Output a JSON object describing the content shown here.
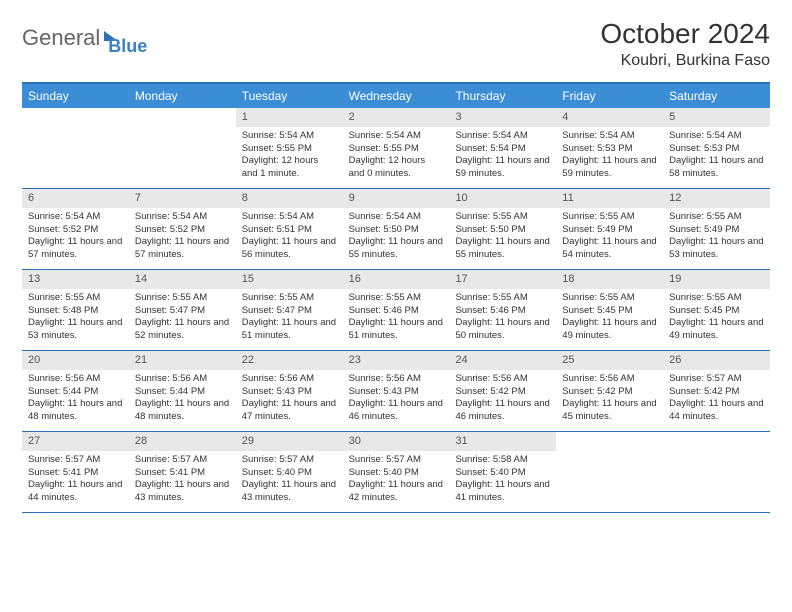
{
  "logo": {
    "part1": "General",
    "part2": "Blue"
  },
  "title": "October 2024",
  "location": "Koubri, Burkina Faso",
  "colors": {
    "header_bg": "#3b8dd6",
    "border": "#2d6fb5",
    "daynum_bg": "#e8e8e8",
    "text": "#333333"
  },
  "weekdays": [
    "Sunday",
    "Monday",
    "Tuesday",
    "Wednesday",
    "Thursday",
    "Friday",
    "Saturday"
  ],
  "weeks": [
    [
      {
        "empty": true
      },
      {
        "empty": true
      },
      {
        "num": "1",
        "sunrise": "Sunrise: 5:54 AM",
        "sunset": "Sunset: 5:55 PM",
        "daylight": "Daylight: 12 hours and 1 minute."
      },
      {
        "num": "2",
        "sunrise": "Sunrise: 5:54 AM",
        "sunset": "Sunset: 5:55 PM",
        "daylight": "Daylight: 12 hours and 0 minutes."
      },
      {
        "num": "3",
        "sunrise": "Sunrise: 5:54 AM",
        "sunset": "Sunset: 5:54 PM",
        "daylight": "Daylight: 11 hours and 59 minutes."
      },
      {
        "num": "4",
        "sunrise": "Sunrise: 5:54 AM",
        "sunset": "Sunset: 5:53 PM",
        "daylight": "Daylight: 11 hours and 59 minutes."
      },
      {
        "num": "5",
        "sunrise": "Sunrise: 5:54 AM",
        "sunset": "Sunset: 5:53 PM",
        "daylight": "Daylight: 11 hours and 58 minutes."
      }
    ],
    [
      {
        "num": "6",
        "sunrise": "Sunrise: 5:54 AM",
        "sunset": "Sunset: 5:52 PM",
        "daylight": "Daylight: 11 hours and 57 minutes."
      },
      {
        "num": "7",
        "sunrise": "Sunrise: 5:54 AM",
        "sunset": "Sunset: 5:52 PM",
        "daylight": "Daylight: 11 hours and 57 minutes."
      },
      {
        "num": "8",
        "sunrise": "Sunrise: 5:54 AM",
        "sunset": "Sunset: 5:51 PM",
        "daylight": "Daylight: 11 hours and 56 minutes."
      },
      {
        "num": "9",
        "sunrise": "Sunrise: 5:54 AM",
        "sunset": "Sunset: 5:50 PM",
        "daylight": "Daylight: 11 hours and 55 minutes."
      },
      {
        "num": "10",
        "sunrise": "Sunrise: 5:55 AM",
        "sunset": "Sunset: 5:50 PM",
        "daylight": "Daylight: 11 hours and 55 minutes."
      },
      {
        "num": "11",
        "sunrise": "Sunrise: 5:55 AM",
        "sunset": "Sunset: 5:49 PM",
        "daylight": "Daylight: 11 hours and 54 minutes."
      },
      {
        "num": "12",
        "sunrise": "Sunrise: 5:55 AM",
        "sunset": "Sunset: 5:49 PM",
        "daylight": "Daylight: 11 hours and 53 minutes."
      }
    ],
    [
      {
        "num": "13",
        "sunrise": "Sunrise: 5:55 AM",
        "sunset": "Sunset: 5:48 PM",
        "daylight": "Daylight: 11 hours and 53 minutes."
      },
      {
        "num": "14",
        "sunrise": "Sunrise: 5:55 AM",
        "sunset": "Sunset: 5:47 PM",
        "daylight": "Daylight: 11 hours and 52 minutes."
      },
      {
        "num": "15",
        "sunrise": "Sunrise: 5:55 AM",
        "sunset": "Sunset: 5:47 PM",
        "daylight": "Daylight: 11 hours and 51 minutes."
      },
      {
        "num": "16",
        "sunrise": "Sunrise: 5:55 AM",
        "sunset": "Sunset: 5:46 PM",
        "daylight": "Daylight: 11 hours and 51 minutes."
      },
      {
        "num": "17",
        "sunrise": "Sunrise: 5:55 AM",
        "sunset": "Sunset: 5:46 PM",
        "daylight": "Daylight: 11 hours and 50 minutes."
      },
      {
        "num": "18",
        "sunrise": "Sunrise: 5:55 AM",
        "sunset": "Sunset: 5:45 PM",
        "daylight": "Daylight: 11 hours and 49 minutes."
      },
      {
        "num": "19",
        "sunrise": "Sunrise: 5:55 AM",
        "sunset": "Sunset: 5:45 PM",
        "daylight": "Daylight: 11 hours and 49 minutes."
      }
    ],
    [
      {
        "num": "20",
        "sunrise": "Sunrise: 5:56 AM",
        "sunset": "Sunset: 5:44 PM",
        "daylight": "Daylight: 11 hours and 48 minutes."
      },
      {
        "num": "21",
        "sunrise": "Sunrise: 5:56 AM",
        "sunset": "Sunset: 5:44 PM",
        "daylight": "Daylight: 11 hours and 48 minutes."
      },
      {
        "num": "22",
        "sunrise": "Sunrise: 5:56 AM",
        "sunset": "Sunset: 5:43 PM",
        "daylight": "Daylight: 11 hours and 47 minutes."
      },
      {
        "num": "23",
        "sunrise": "Sunrise: 5:56 AM",
        "sunset": "Sunset: 5:43 PM",
        "daylight": "Daylight: 11 hours and 46 minutes."
      },
      {
        "num": "24",
        "sunrise": "Sunrise: 5:56 AM",
        "sunset": "Sunset: 5:42 PM",
        "daylight": "Daylight: 11 hours and 46 minutes."
      },
      {
        "num": "25",
        "sunrise": "Sunrise: 5:56 AM",
        "sunset": "Sunset: 5:42 PM",
        "daylight": "Daylight: 11 hours and 45 minutes."
      },
      {
        "num": "26",
        "sunrise": "Sunrise: 5:57 AM",
        "sunset": "Sunset: 5:42 PM",
        "daylight": "Daylight: 11 hours and 44 minutes."
      }
    ],
    [
      {
        "num": "27",
        "sunrise": "Sunrise: 5:57 AM",
        "sunset": "Sunset: 5:41 PM",
        "daylight": "Daylight: 11 hours and 44 minutes."
      },
      {
        "num": "28",
        "sunrise": "Sunrise: 5:57 AM",
        "sunset": "Sunset: 5:41 PM",
        "daylight": "Daylight: 11 hours and 43 minutes."
      },
      {
        "num": "29",
        "sunrise": "Sunrise: 5:57 AM",
        "sunset": "Sunset: 5:40 PM",
        "daylight": "Daylight: 11 hours and 43 minutes."
      },
      {
        "num": "30",
        "sunrise": "Sunrise: 5:57 AM",
        "sunset": "Sunset: 5:40 PM",
        "daylight": "Daylight: 11 hours and 42 minutes."
      },
      {
        "num": "31",
        "sunrise": "Sunrise: 5:58 AM",
        "sunset": "Sunset: 5:40 PM",
        "daylight": "Daylight: 11 hours and 41 minutes."
      },
      {
        "empty": true
      },
      {
        "empty": true
      }
    ]
  ]
}
